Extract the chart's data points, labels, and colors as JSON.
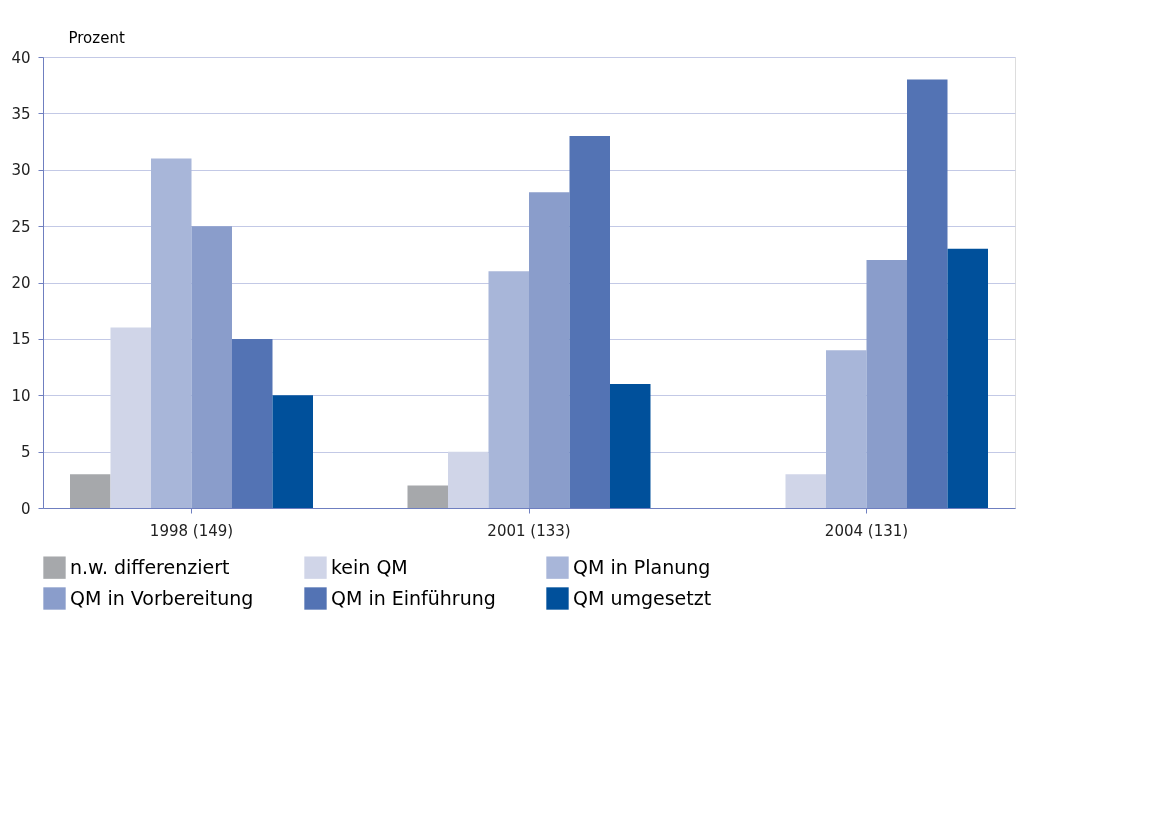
{
  "chart_data": {
    "type": "bar",
    "ylabel": "Prozent",
    "categories": [
      "1998 (149)",
      "2001 (133)",
      "2004 (131)"
    ],
    "series": [
      {
        "name": "n.w. differenziert",
        "color": "#a6a8ab",
        "values": [
          3,
          2,
          null
        ]
      },
      {
        "name": "kein QM",
        "color": "#d0d5e8",
        "values": [
          16,
          5,
          3
        ]
      },
      {
        "name": "QM in Planung",
        "color": "#a8b6d9",
        "values": [
          31,
          21,
          14
        ]
      },
      {
        "name": "QM in Vorbereitung",
        "color": "#8a9dcb",
        "values": [
          25,
          28,
          22
        ]
      },
      {
        "name": "QM in Einführung",
        "color": "#5373b4",
        "values": [
          15,
          33,
          38
        ]
      },
      {
        "name": "QM umgesetzt",
        "color": "#00509b",
        "values": [
          10,
          11,
          23
        ]
      }
    ],
    "ylim": [
      0,
      40
    ],
    "yticks": [
      0,
      5,
      10,
      15,
      20,
      25,
      30,
      35,
      40
    ],
    "grid": "y",
    "legend": "bottom"
  }
}
